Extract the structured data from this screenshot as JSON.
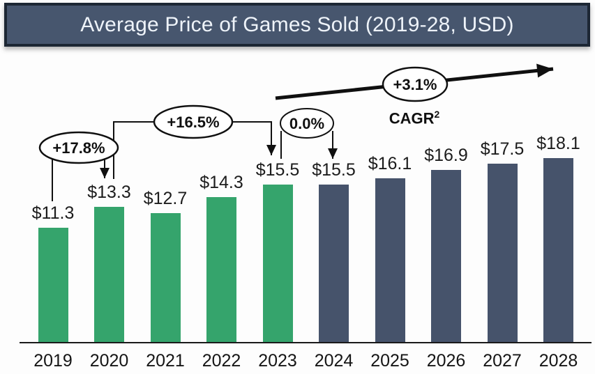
{
  "title_bar": {
    "text": "Average Price of Games Sold (2019-28, USD)"
  },
  "chart_data": {
    "type": "bar",
    "title": "Average Price of Games Sold (2019-28, USD)",
    "unit": "USD",
    "categories": [
      "2019",
      "2020",
      "2021",
      "2022",
      "2023",
      "2024",
      "2025",
      "2026",
      "2027",
      "2028"
    ],
    "values": [
      11.3,
      13.3,
      12.7,
      14.3,
      15.5,
      15.5,
      16.1,
      16.9,
      17.5,
      18.1
    ],
    "value_labels": [
      "$11.3",
      "$13.3",
      "$12.7",
      "$14.3",
      "$15.5",
      "$15.5",
      "$16.1",
      "$16.9",
      "$17.5",
      "$18.1"
    ],
    "ylim": [
      0,
      20
    ],
    "grid": false,
    "legend": "none",
    "bar_colors": {
      "historical": "#35a46c",
      "forecast": "#46536b"
    },
    "forecast_start_index": 5,
    "annotations": [
      {
        "label": "+17.8%",
        "type": "growth",
        "from": "2019",
        "to": "2020"
      },
      {
        "label": "+16.5%",
        "type": "growth",
        "from": "2020",
        "to": "2023"
      },
      {
        "label": "0.0%",
        "type": "growth",
        "from": "2023",
        "to": "2024"
      },
      {
        "label": "+3.1%",
        "type": "cagr-arrow",
        "from": "2023",
        "to": "2028"
      }
    ],
    "cagr": {
      "text": "CAGR",
      "sup": "2"
    }
  },
  "colors": {
    "title_bar_bg": "#47566e",
    "title_bar_border": "#1d2734",
    "title_text": "#eef3f9",
    "historical_bar": "#35a46c",
    "forecast_bar": "#46536b",
    "axis_line": "#1a1a1a",
    "annotation_ink": "#101010",
    "oval_fill": "#ffffff"
  }
}
